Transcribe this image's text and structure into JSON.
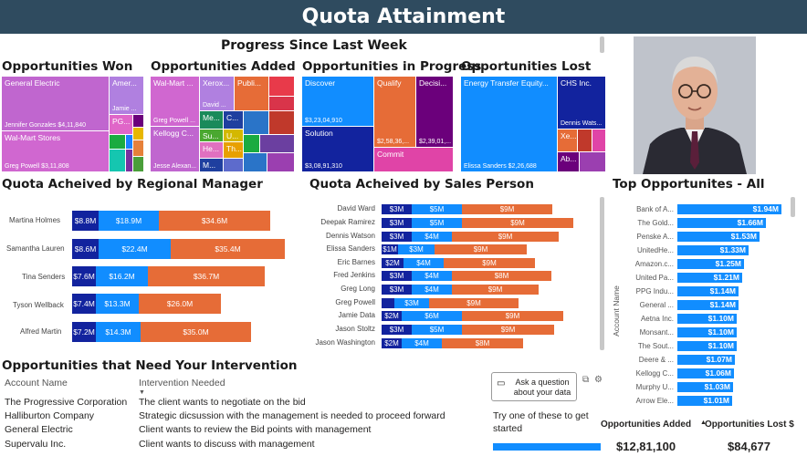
{
  "header": {
    "title": "Quota Attainment"
  },
  "progress_title": "Progress Since Last Week",
  "treemaps": {
    "won": {
      "title": "Opportunities Won",
      "tiles": [
        {
          "label": "General Electric",
          "sub": "Jennifer Gonzales $4,11,840"
        },
        {
          "label": "Wal-Mart Stores",
          "sub": "Greg Powell $3,11,808"
        },
        {
          "label": "Amer...",
          "sub": "Jamie ..."
        },
        {
          "label": "PG...",
          "sub": ""
        }
      ]
    },
    "added": {
      "title": "Opportunities Added",
      "tiles": [
        {
          "label": "Wal-Mart ...",
          "sub": "Greg Powell ..."
        },
        {
          "label": "Kellogg C...",
          "sub": "Jesse Alexan..."
        },
        {
          "label": "Xerox...",
          "sub": "David ..."
        },
        {
          "label": "Publi...",
          "sub": ""
        },
        {
          "label": "Me...",
          "sub": ""
        },
        {
          "label": "C...",
          "sub": ""
        },
        {
          "label": "Su...",
          "sub": ""
        },
        {
          "label": "U...",
          "sub": ""
        },
        {
          "label": "He...",
          "sub": ""
        },
        {
          "label": "Th...",
          "sub": ""
        },
        {
          "label": "M...",
          "sub": ""
        }
      ]
    },
    "progress": {
      "title": "Opportunities in Progress",
      "tiles": [
        {
          "label": "Discover",
          "sub": "$3,23,04,910"
        },
        {
          "label": "Solution",
          "sub": "$3,08,91,310"
        },
        {
          "label": "Qualify",
          "sub": "$2,58,36,..."
        },
        {
          "label": "Decisi...",
          "sub": "$2,39,01,..."
        },
        {
          "label": "Commit",
          "sub": ""
        }
      ]
    },
    "lost": {
      "title": "Opportunities Lost",
      "tiles": [
        {
          "label": "Energy Transfer Equity...",
          "sub": "Elissa Sanders $2,26,688"
        },
        {
          "label": "CHS Inc.",
          "sub": "Dennis Wats..."
        },
        {
          "label": "Xe...",
          "sub": ""
        },
        {
          "label": "Ab...",
          "sub": ""
        }
      ]
    }
  },
  "regional": {
    "title": "Quota Acheived by Regional Manager",
    "rows": [
      {
        "name": "Martina Holmes",
        "a": "$8.8M",
        "b": "$18.9M",
        "c": "$34.6M"
      },
      {
        "name": "Samantha Lauren",
        "a": "$8.6M",
        "b": "$22.4M",
        "c": "$35.4M"
      },
      {
        "name": "Tina Senders",
        "a": "$7.6M",
        "b": "$16.2M",
        "c": "$36.7M"
      },
      {
        "name": "Tyson Wellback",
        "a": "$7.4M",
        "b": "$13.3M",
        "c": "$26.0M"
      },
      {
        "name": "Alfred Martin",
        "a": "$7.2M",
        "b": "$14.3M",
        "c": "$35.0M"
      }
    ]
  },
  "salesperson": {
    "title": "Quota Acheived by Sales Person",
    "rows": [
      {
        "name": "David Ward",
        "a": "$3M",
        "b": "$5M",
        "c": "$9M"
      },
      {
        "name": "Deepak Ramirez",
        "a": "$3M",
        "b": "$5M",
        "c": "$9M"
      },
      {
        "name": "Dennis Watson",
        "a": "$3M",
        "b": "$4M",
        "c": "$9M"
      },
      {
        "name": "Elissa Sanders",
        "a": "$1M",
        "b": "$3M",
        "c": "$9M"
      },
      {
        "name": "Eric Barnes",
        "a": "$2M",
        "b": "$4M",
        "c": "$9M"
      },
      {
        "name": "Fred Jenkins",
        "a": "$3M",
        "b": "$4M",
        "c": "$8M"
      },
      {
        "name": "Greg Long",
        "a": "$3M",
        "b": "$4M",
        "c": "$9M"
      },
      {
        "name": "Greg Powell",
        "a": "",
        "b": "$3M",
        "c": "$9M"
      },
      {
        "name": "Jamie Data",
        "a": "$2M",
        "b": "$6M",
        "c": "$9M"
      },
      {
        "name": "Jason Stoltz",
        "a": "$3M",
        "b": "$5M",
        "c": "$9M"
      },
      {
        "name": "Jason Washington",
        "a": "$2M",
        "b": "$4M",
        "c": "$8M"
      }
    ]
  },
  "top": {
    "title": "Top Opportunites - All",
    "axis_label": "Account Name",
    "rows": [
      {
        "name": "Bank of A...",
        "value": "$1.94M"
      },
      {
        "name": "The Gold...",
        "value": "$1.66M"
      },
      {
        "name": "Penske A...",
        "value": "$1.53M"
      },
      {
        "name": "UnitedHe...",
        "value": "$1.33M"
      },
      {
        "name": "Amazon.c...",
        "value": "$1.25M"
      },
      {
        "name": "United Pa...",
        "value": "$1.21M"
      },
      {
        "name": "PPG Indu...",
        "value": "$1.14M"
      },
      {
        "name": "General ...",
        "value": "$1.14M"
      },
      {
        "name": "Aetna Inc.",
        "value": "$1.10M"
      },
      {
        "name": "Monsant...",
        "value": "$1.10M"
      },
      {
        "name": "The Sout...",
        "value": "$1.10M"
      },
      {
        "name": "Deere & ...",
        "value": "$1.07M"
      },
      {
        "name": "Kellogg C...",
        "value": "$1.06M"
      },
      {
        "name": "Murphy U...",
        "value": "$1.03M"
      },
      {
        "name": "Arrow Ele...",
        "value": "$1.01M"
      }
    ]
  },
  "intervention": {
    "title": "Opportunities that Need Your Intervention",
    "col1": "Account Name",
    "col2": "Intervention Needed",
    "rows": [
      {
        "account": "The Progressive Corporation",
        "note": "The client wants to negotiate on the bid"
      },
      {
        "account": "Halliburton Company",
        "note": "Strategic dicsussion with the management is needed to proceed forward"
      },
      {
        "account": "General Electric",
        "note": "Client wants to review the Bid points with management"
      },
      {
        "account": "Supervalu Inc.",
        "note": "Client wants to discuss with management"
      }
    ]
  },
  "qa": {
    "button": "Ask a question about your data",
    "prompt": "Try one of these to get started"
  },
  "cards": {
    "added_label": "Opportunities Added",
    "added_value": "$12,81,100",
    "lost_label": "Opportunities Lost $",
    "lost_value": "$84,677"
  }
}
